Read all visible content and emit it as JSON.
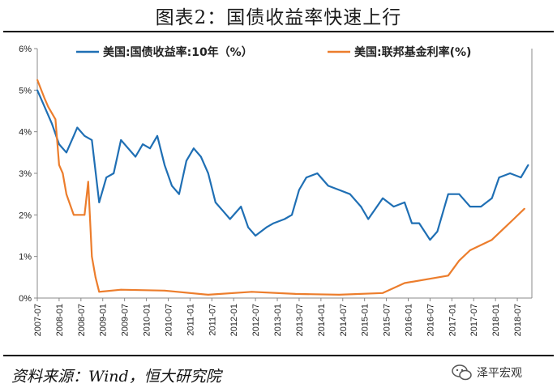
{
  "title": "图表2：国债收益率快速上行",
  "source": "资料来源：Wind，恒大研究院",
  "watermark": "泽平宏观",
  "chart_data": {
    "type": "line",
    "ylim": [
      0,
      6
    ],
    "y_ticks": [
      "0%",
      "1%",
      "2%",
      "3%",
      "4%",
      "5%",
      "6%"
    ],
    "x_ticks": [
      "2007-07",
      "2008-01",
      "2008-07",
      "2009-01",
      "2009-07",
      "2010-01",
      "2010-07",
      "2011-01",
      "2011-07",
      "2012-01",
      "2012-07",
      "2013-01",
      "2013-07",
      "2014-01",
      "2014-07",
      "2015-01",
      "2015-07",
      "2016-01",
      "2016-07",
      "2017-01",
      "2017-07",
      "2018-01",
      "2018-07"
    ],
    "legend_position": "top",
    "series": [
      {
        "name": "美国:国债收益率:10年（%）",
        "color": "#1f6fb4",
        "points": [
          [
            "2007-07",
            5.0
          ],
          [
            "2007-09",
            4.6
          ],
          [
            "2007-11",
            4.2
          ],
          [
            "2008-01",
            3.7
          ],
          [
            "2008-03",
            3.5
          ],
          [
            "2008-05",
            3.9
          ],
          [
            "2008-06",
            4.1
          ],
          [
            "2008-08",
            3.9
          ],
          [
            "2008-10",
            3.8
          ],
          [
            "2008-12",
            2.3
          ],
          [
            "2009-02",
            2.9
          ],
          [
            "2009-04",
            3.0
          ],
          [
            "2009-06",
            3.8
          ],
          [
            "2009-08",
            3.6
          ],
          [
            "2009-10",
            3.4
          ],
          [
            "2009-12",
            3.7
          ],
          [
            "2010-02",
            3.6
          ],
          [
            "2010-04",
            3.9
          ],
          [
            "2010-06",
            3.2
          ],
          [
            "2010-08",
            2.7
          ],
          [
            "2010-10",
            2.5
          ],
          [
            "2010-12",
            3.3
          ],
          [
            "2011-02",
            3.6
          ],
          [
            "2011-04",
            3.4
          ],
          [
            "2011-06",
            3.0
          ],
          [
            "2011-08",
            2.3
          ],
          [
            "2011-10",
            2.1
          ],
          [
            "2011-12",
            1.9
          ],
          [
            "2012-03",
            2.2
          ],
          [
            "2012-05",
            1.7
          ],
          [
            "2012-07",
            1.5
          ],
          [
            "2012-10",
            1.7
          ],
          [
            "2012-12",
            1.8
          ],
          [
            "2013-03",
            1.9
          ],
          [
            "2013-05",
            2.0
          ],
          [
            "2013-07",
            2.6
          ],
          [
            "2013-09",
            2.9
          ],
          [
            "2013-12",
            3.0
          ],
          [
            "2014-03",
            2.7
          ],
          [
            "2014-06",
            2.6
          ],
          [
            "2014-09",
            2.5
          ],
          [
            "2014-12",
            2.2
          ],
          [
            "2015-02",
            1.9
          ],
          [
            "2015-06",
            2.4
          ],
          [
            "2015-09",
            2.2
          ],
          [
            "2015-12",
            2.3
          ],
          [
            "2016-02",
            1.8
          ],
          [
            "2016-04",
            1.8
          ],
          [
            "2016-07",
            1.4
          ],
          [
            "2016-09",
            1.6
          ],
          [
            "2016-12",
            2.5
          ],
          [
            "2017-03",
            2.5
          ],
          [
            "2017-06",
            2.2
          ],
          [
            "2017-09",
            2.2
          ],
          [
            "2017-12",
            2.4
          ],
          [
            "2018-02",
            2.9
          ],
          [
            "2018-05",
            3.0
          ],
          [
            "2018-08",
            2.9
          ],
          [
            "2018-10",
            3.2
          ]
        ]
      },
      {
        "name": "美国:联邦基金利率(%)",
        "color": "#ec7d2c",
        "points": [
          [
            "2007-07",
            5.25
          ],
          [
            "2007-09",
            4.8
          ],
          [
            "2007-10",
            4.6
          ],
          [
            "2007-12",
            4.3
          ],
          [
            "2008-01",
            3.2
          ],
          [
            "2008-02",
            3.0
          ],
          [
            "2008-03",
            2.5
          ],
          [
            "2008-05",
            2.0
          ],
          [
            "2008-08",
            2.0
          ],
          [
            "2008-09",
            2.8
          ],
          [
            "2008-10",
            1.0
          ],
          [
            "2008-11",
            0.5
          ],
          [
            "2008-12",
            0.15
          ],
          [
            "2009-06",
            0.2
          ],
          [
            "2010-06",
            0.18
          ],
          [
            "2011-06",
            0.08
          ],
          [
            "2012-06",
            0.15
          ],
          [
            "2013-06",
            0.1
          ],
          [
            "2014-06",
            0.08
          ],
          [
            "2015-06",
            0.12
          ],
          [
            "2015-12",
            0.36
          ],
          [
            "2016-12",
            0.54
          ],
          [
            "2017-03",
            0.9
          ],
          [
            "2017-06",
            1.15
          ],
          [
            "2017-12",
            1.4
          ],
          [
            "2018-03",
            1.65
          ],
          [
            "2018-06",
            1.9
          ],
          [
            "2018-09",
            2.15
          ]
        ]
      }
    ]
  }
}
